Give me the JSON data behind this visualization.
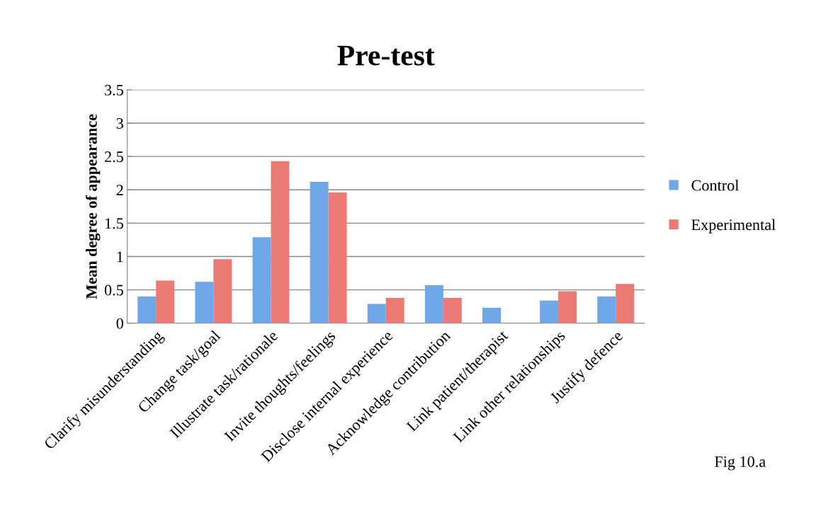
{
  "chart_data": {
    "type": "bar",
    "title": "Pre-test",
    "ylabel": "Mean degree of appearance",
    "categories": [
      "Clarify misunderstanding",
      "Change task/goal",
      "Illustrate task/rationale",
      "Invite thoughts/feelings",
      "Disclose internal experience",
      "Acknowledge contribution",
      "Link patient/therapist",
      "Link other relationships",
      "Justify defence"
    ],
    "series": [
      {
        "name": "Control",
        "color": "#6fa8e8",
        "values": [
          0.4,
          0.62,
          1.29,
          2.12,
          0.29,
          0.57,
          0.23,
          0.34,
          0.4
        ]
      },
      {
        "name": "Experimental",
        "color": "#eb7a75",
        "values": [
          0.64,
          0.96,
          2.43,
          1.96,
          0.38,
          0.38,
          0,
          0.48,
          0.59
        ]
      }
    ],
    "ylim": [
      0,
      3.5
    ],
    "yticks": [
      0,
      0.5,
      1,
      1.5,
      2,
      2.5,
      3,
      3.5
    ],
    "grid": "y",
    "legend": "right",
    "annotations": [
      "Fig 10.a"
    ]
  }
}
